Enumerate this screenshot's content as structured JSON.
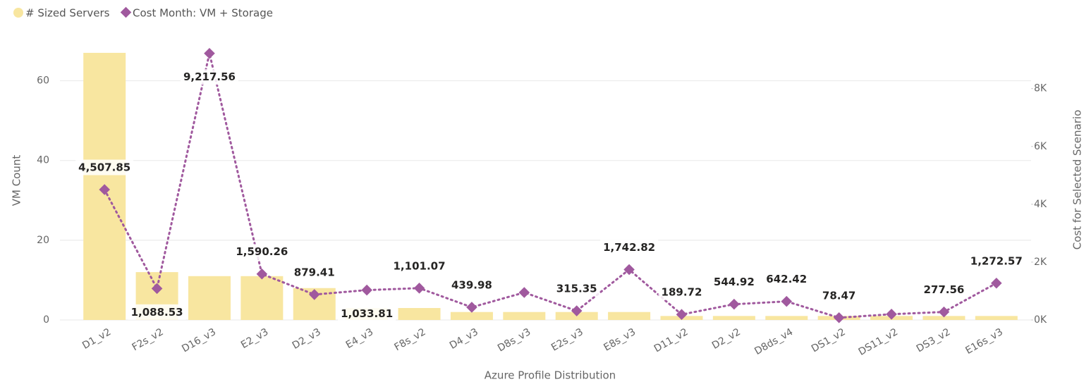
{
  "chart_data": {
    "type": "combo",
    "legend": "top-left",
    "x_label": "Azure Profile Distribution",
    "y_label": "VM Count",
    "y2_label": "Cost for Selected Scenario",
    "categories": [
      "D1_v2",
      "F2s_v2",
      "D16_v3",
      "E2_v3",
      "D2_v3",
      "E4_v3",
      "F8s_v2",
      "D4_v3",
      "D8s_v3",
      "E2s_v3",
      "E8s_v3",
      "D11_v2",
      "D2_v2",
      "D8ds_v4",
      "DS1_v2",
      "DS11_v2",
      "DS3_v2",
      "E16s_v3"
    ],
    "ylim": [
      0,
      70
    ],
    "yticks": [
      0,
      20,
      40,
      60
    ],
    "y2lim": [
      0,
      9650
    ],
    "y2ticks": [
      {
        "value": 0,
        "label": "0K"
      },
      {
        "value": 2000,
        "label": "2K"
      },
      {
        "value": 4000,
        "label": "4K"
      },
      {
        "value": 6000,
        "label": "6K"
      },
      {
        "value": 8000,
        "label": "8K"
      }
    ],
    "grid": true,
    "series": [
      {
        "name": "# Sized Servers",
        "kind": "bar",
        "color": "#f8e6a0",
        "values": [
          67,
          12,
          11,
          11,
          8,
          3,
          3,
          2,
          2,
          2,
          2,
          1,
          1,
          1,
          1,
          1,
          1,
          1
        ]
      },
      {
        "name": "Cost Month: VM + Storage",
        "kind": "line",
        "axis": "y2",
        "color": "#a0599e",
        "values": [
          4507.85,
          1088.53,
          9217.56,
          1590.26,
          879.41,
          1033.81,
          1101.07,
          439.98,
          950,
          315.35,
          1742.82,
          189.72,
          544.92,
          642.42,
          78.47,
          200,
          277.56,
          1272.57
        ],
        "value_labels": [
          "4,507.85",
          "1,088.53",
          "9,217.56",
          "1,590.26",
          "879.41",
          "1,033.81",
          "1,101.07",
          "439.98",
          null,
          "315.35",
          "1,742.82",
          "189.72",
          "544.92",
          "642.42",
          "78.47",
          null,
          "277.56",
          "1,272.57"
        ]
      }
    ]
  }
}
